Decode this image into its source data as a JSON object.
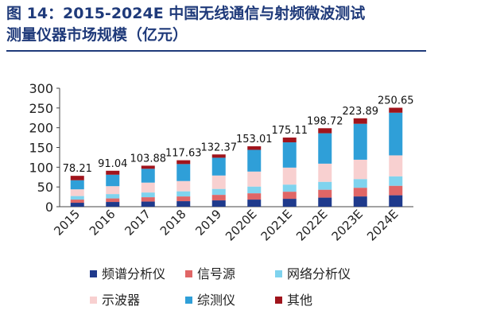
{
  "header": {
    "title_line1": "图 14：2015-2024E 中国无线通信与射频微波测试",
    "title_line2": "测量仪器市场规模（亿元）"
  },
  "chart_data": {
    "type": "bar",
    "stacked": true,
    "categories": [
      "2015",
      "2016",
      "2017",
      "2018",
      "2019",
      "2020E",
      "2021E",
      "2022E",
      "2023E",
      "2024E"
    ],
    "series": [
      {
        "name": "频谱分析仪",
        "color": "#1f3a8c",
        "values": [
          10,
          12,
          13,
          14,
          16,
          18,
          20,
          23,
          26,
          29
        ]
      },
      {
        "name": "信号源",
        "color": "#e06666",
        "values": [
          8,
          9,
          11,
          12,
          14,
          16,
          18,
          20,
          22,
          24
        ]
      },
      {
        "name": "网络分析仪",
        "color": "#7fd3ee",
        "values": [
          9,
          11,
          12,
          13,
          15,
          17,
          18,
          20,
          22,
          24
        ]
      },
      {
        "name": "示波器",
        "color": "#f8d0d0",
        "values": [
          17,
          20,
          25,
          26,
          34,
          38,
          43,
          46,
          49,
          53
        ]
      },
      {
        "name": "综测仪",
        "color": "#2f9fd8",
        "values": [
          23,
          29,
          35,
          43,
          45,
          55,
          64,
          77,
          91,
          108
        ]
      },
      {
        "name": "其他",
        "color": "#a0141c",
        "values": [
          11.21,
          10.04,
          7.88,
          9.63,
          8.37,
          9.01,
          12.11,
          12.72,
          13.89,
          12.65
        ]
      }
    ],
    "totals": [
      78.21,
      91.04,
      103.88,
      117.63,
      132.37,
      153.01,
      175.11,
      198.72,
      223.89,
      250.65
    ],
    "total_labels": [
      "78.21",
      "91.04",
      "103.88",
      "117.63",
      "132.37",
      "153.01",
      "175.11",
      "198.72",
      "223.89",
      "250.65"
    ],
    "ylim": [
      0,
      300
    ],
    "yticks": [
      0,
      50,
      100,
      150,
      200,
      250,
      300
    ],
    "xlabel": "",
    "ylabel": "",
    "grid": false,
    "legend_position": "bottom"
  }
}
